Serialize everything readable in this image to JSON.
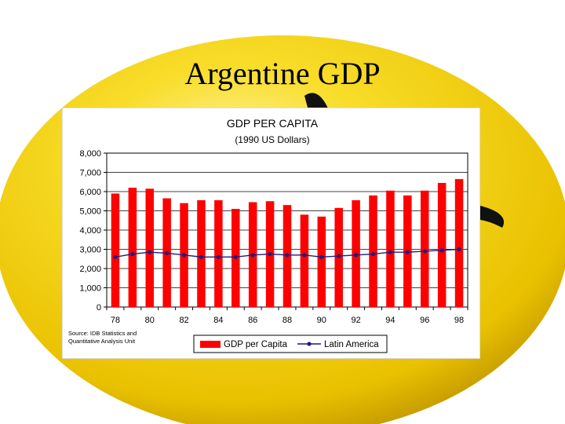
{
  "slide": {
    "title": "Argentine GDP"
  },
  "colors": {
    "background_shape": "#f7d51a",
    "bar": "#ff0000",
    "line": "#1c1c80",
    "marker": "#1c1c80"
  },
  "chart_data": {
    "type": "bar",
    "title": "GDP PER CAPITA",
    "subtitle": "(1990 US Dollars)",
    "source": "Source: IDB Statistics and Quantitative Analysis Unit",
    "x_tick_labels": [
      "78",
      "80",
      "82",
      "84",
      "86",
      "88",
      "90",
      "92",
      "94",
      "96",
      "98"
    ],
    "y_tick_labels": [
      "0",
      "1,000",
      "2,000",
      "3,000",
      "4,000",
      "5,000",
      "6,000",
      "7,000",
      "8,000"
    ],
    "ylim": [
      0,
      8000
    ],
    "grid": true,
    "legend_position": "bottom",
    "categories": [
      "1978",
      "1979",
      "1980",
      "1981",
      "1982",
      "1983",
      "1984",
      "1985",
      "1986",
      "1987",
      "1988",
      "1989",
      "1990",
      "1991",
      "1992",
      "1993",
      "1994",
      "1995",
      "1996",
      "1997",
      "1998"
    ],
    "series": [
      {
        "name": "GDP per Capita",
        "kind": "bar",
        "values": [
          5900,
          6200,
          6150,
          5650,
          5400,
          5550,
          5550,
          5100,
          5450,
          5500,
          5300,
          4800,
          4700,
          5150,
          5550,
          5800,
          6050,
          5800,
          6050,
          6450,
          6650
        ]
      },
      {
        "name": "Latin America",
        "kind": "line",
        "values": [
          2600,
          2750,
          2850,
          2800,
          2700,
          2600,
          2600,
          2600,
          2700,
          2750,
          2700,
          2700,
          2600,
          2650,
          2700,
          2750,
          2850,
          2850,
          2900,
          2950,
          3000
        ]
      }
    ]
  }
}
